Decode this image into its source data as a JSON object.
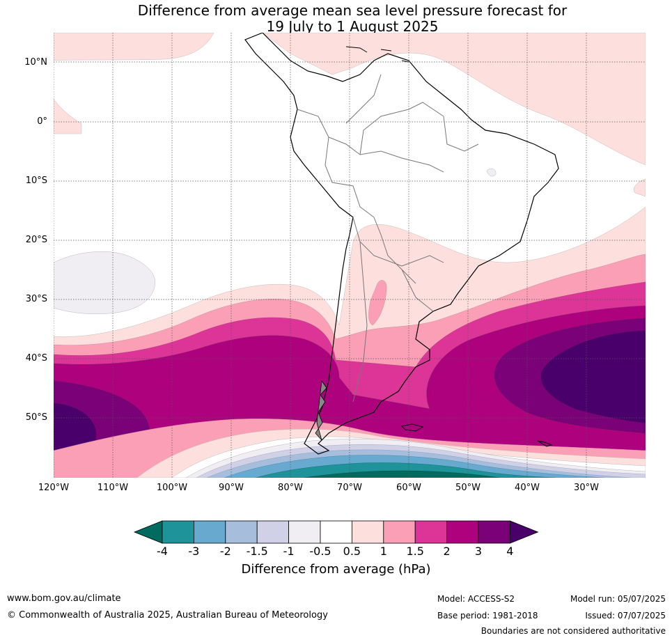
{
  "title_line1": "Difference from average mean sea level pressure forecast for",
  "title_line2": "19 July to 1 August 2025",
  "lat_labels": [
    "10°N",
    "0°",
    "10°S",
    "20°S",
    "30°S",
    "40°S",
    "50°S"
  ],
  "lon_labels": [
    "120°W",
    "110°W",
    "100°W",
    "90°W",
    "80°W",
    "70°W",
    "60°W",
    "50°W",
    "40°W",
    "30°W"
  ],
  "colorbar": {
    "label": "Difference from average (hPa)",
    "ticks": [
      "-4",
      "-3",
      "-2",
      "-1.5",
      "-1",
      "-0.5",
      "0.5",
      "1",
      "1.5",
      "2",
      "3",
      "4"
    ],
    "colors": [
      "#006b5e",
      "#1e9399",
      "#67a9cf",
      "#a6bddb",
      "#d0d1e6",
      "#f1eef3",
      "#ffffff",
      "#fde0dd",
      "#fa9fb5",
      "#dd3497",
      "#ae017e",
      "#7a0177",
      "#49006a"
    ]
  },
  "footer": {
    "website": "www.bom.gov.au/climate",
    "copyright": "© Commonwealth of Australia 2025, Australian Bureau of Meteorology",
    "model": "Model: ACCESS-S2",
    "base_period": "Base period: 1981-2018",
    "model_run": "Model run: 05/07/2025",
    "issued": "Issued: 07/07/2025",
    "disclaimer": "Boundaries are not considered authoritative"
  }
}
